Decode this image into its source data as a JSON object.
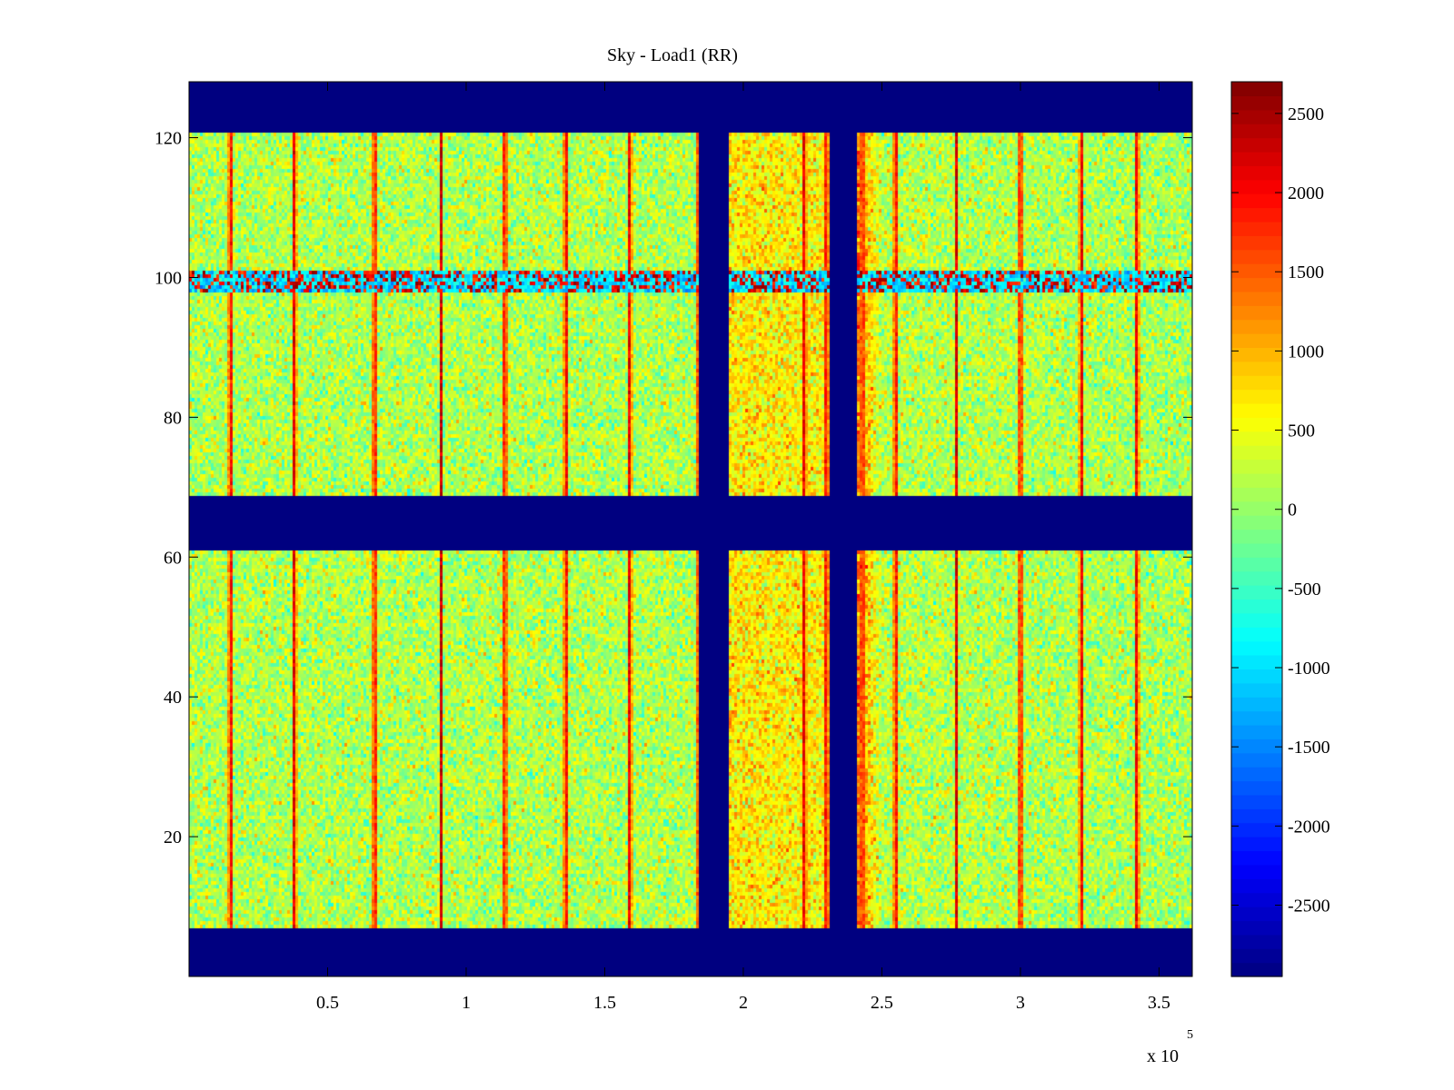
{
  "chart_data": {
    "type": "heatmap",
    "title": "Sky - Load1 (RR)",
    "xlabel": "",
    "ylabel": "",
    "x_exponent_label": "x 10",
    "x_exponent_power": "5",
    "xlim": [
      0,
      3.62
    ],
    "ylim": [
      0,
      128
    ],
    "xticks": [
      {
        "value": 0.5,
        "label": "0.5"
      },
      {
        "value": 1,
        "label": "1"
      },
      {
        "value": 1.5,
        "label": "1.5"
      },
      {
        "value": 2,
        "label": "2"
      },
      {
        "value": 2.5,
        "label": "2.5"
      },
      {
        "value": 3,
        "label": "3"
      },
      {
        "value": 3.5,
        "label": "3.5"
      }
    ],
    "yticks": [
      {
        "value": 20,
        "label": "20"
      },
      {
        "value": 40,
        "label": "40"
      },
      {
        "value": 60,
        "label": "60"
      },
      {
        "value": 80,
        "label": "80"
      },
      {
        "value": 100,
        "label": "100"
      },
      {
        "value": 120,
        "label": "120"
      }
    ],
    "colorbar": {
      "colormap": "jet",
      "clim": [
        -2950,
        2700
      ],
      "ticks": [
        {
          "value": 2500,
          "label": "2500"
        },
        {
          "value": 2000,
          "label": "2000"
        },
        {
          "value": 1500,
          "label": "1500"
        },
        {
          "value": 1000,
          "label": "1000"
        },
        {
          "value": 500,
          "label": "500"
        },
        {
          "value": 0,
          "label": "0"
        },
        {
          "value": -500,
          "label": "-500"
        },
        {
          "value": -1000,
          "label": "-1000"
        },
        {
          "value": -1500,
          "label": "-1500"
        },
        {
          "value": -2000,
          "label": "-2000"
        },
        {
          "value": -2500,
          "label": "-2500"
        }
      ]
    },
    "background_value": -2950,
    "data_row_bands": [
      [
        7,
        61
      ],
      [
        69,
        121
      ]
    ],
    "masked_x_gaps": [
      [
        1.84,
        1.95
      ],
      [
        2.31,
        2.41
      ]
    ],
    "bright_vertical_lines_x": [
      0.15,
      0.38,
      0.67,
      0.91,
      1.14,
      1.36,
      1.59,
      1.84,
      2.22,
      2.3,
      2.43,
      2.55,
      2.77,
      3.0,
      3.22,
      3.42
    ],
    "rfi_rows": [
      {
        "y_min": 98,
        "y_max": 101,
        "base_value": -1000
      }
    ],
    "channel_mean_profile": [
      {
        "x": 0.0,
        "value": 150
      },
      {
        "x": 1.84,
        "value": 150
      },
      {
        "x": 1.95,
        "value": 700
      },
      {
        "x": 2.31,
        "value": 600
      },
      {
        "x": 2.41,
        "value": 1400
      },
      {
        "x": 2.5,
        "value": 200
      },
      {
        "x": 3.62,
        "value": 100
      }
    ],
    "noise_std": 350,
    "line_peak_value": 2600
  }
}
